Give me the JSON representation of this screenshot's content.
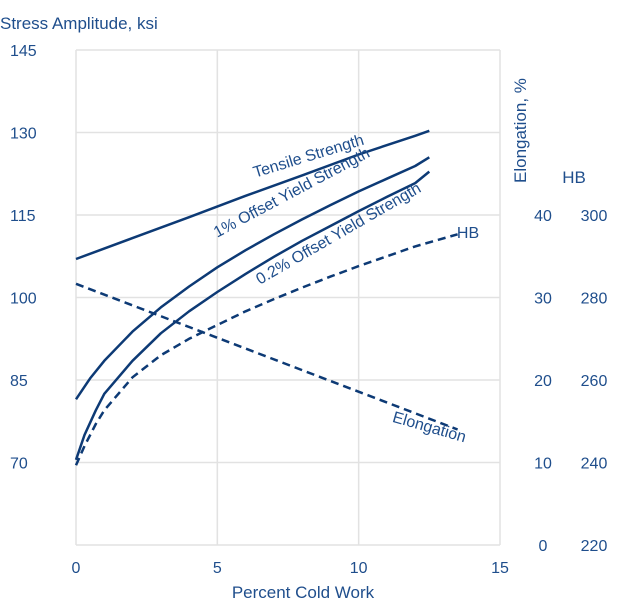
{
  "chart_data": {
    "type": "line",
    "colors": {
      "axis": "#1f4e8c",
      "line": "#0d3a75",
      "grid": "#e2e2e2",
      "background": "#ffffff"
    },
    "grid": true,
    "xlabel": "Percent Cold Work",
    "ylabel": "Stress Amplitude, ksi",
    "xlim": [
      0,
      15
    ],
    "ylim": [
      55,
      145
    ],
    "xticks": [
      "0",
      "5",
      "10",
      "15"
    ],
    "yticks": [
      "70",
      "85",
      "100",
      "115",
      "130",
      "145"
    ],
    "y2": {
      "label": "Elongation, %",
      "ticks": [
        "0",
        "10",
        "20",
        "30",
        "40"
      ]
    },
    "y3": {
      "label": "HB",
      "ticks": [
        "220",
        "240",
        "260",
        "280",
        "300"
      ]
    },
    "series": [
      {
        "name": "Tensile Strength",
        "axis": "ksi",
        "style": "solid",
        "x": [
          0,
          2,
          4,
          6,
          8,
          10,
          12,
          12.5
        ],
        "y": [
          107,
          110.8,
          114.6,
          118.5,
          122.2,
          126,
          129.4,
          130.3
        ]
      },
      {
        "name": "1% Offset Yield Strength",
        "axis": "ksi",
        "style": "solid",
        "x": [
          0,
          0.5,
          1,
          2,
          3,
          4,
          5,
          6,
          7,
          8,
          9,
          10,
          11,
          12,
          12.5
        ],
        "y": [
          81.5,
          85.3,
          88.5,
          93.8,
          98.2,
          102,
          105.5,
          108.6,
          111.5,
          114.2,
          116.8,
          119.3,
          121.6,
          123.9,
          125.5
        ]
      },
      {
        "name": "0.2% Offset Yield Strength",
        "axis": "ksi",
        "style": "solid",
        "x": [
          0,
          0.3,
          0.7,
          1,
          2,
          3,
          4,
          5,
          6,
          7,
          8,
          9,
          10,
          11,
          12,
          12.5
        ],
        "y": [
          70.5,
          75,
          79.5,
          82.5,
          88.5,
          93.5,
          97.5,
          101,
          104.3,
          107.4,
          110.3,
          113,
          115.7,
          118.3,
          120.8,
          122.9
        ]
      },
      {
        "name": "HB",
        "axis": "ksi",
        "style": "dashed",
        "x": [
          0,
          0.3,
          0.7,
          1,
          2,
          3,
          4,
          5,
          6,
          7,
          8,
          9,
          10,
          11,
          12,
          13.5
        ],
        "y": [
          69.5,
          73,
          77,
          79.5,
          85.5,
          89.5,
          92.5,
          95,
          97.5,
          99.7,
          101.8,
          103.8,
          105.7,
          107.5,
          109.3,
          111.5
        ]
      },
      {
        "name": "Elongation",
        "axis": "ksi",
        "style": "dashed",
        "x": [
          0,
          13.5
        ],
        "y": [
          102.5,
          76
        ]
      }
    ]
  }
}
